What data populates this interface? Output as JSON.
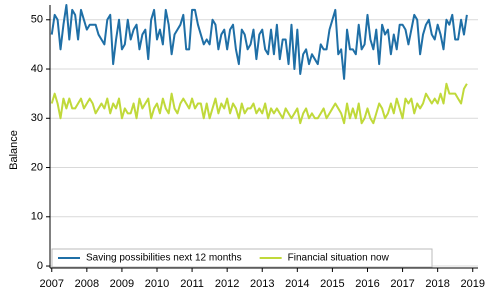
{
  "chart_data": {
    "type": "line",
    "y_label": "Balance",
    "x": [
      2007,
      2007.083,
      2007.167,
      2007.25,
      2007.333,
      2007.417,
      2007.5,
      2007.583,
      2007.667,
      2007.75,
      2007.833,
      2007.917,
      2008,
      2008.083,
      2008.167,
      2008.25,
      2008.333,
      2008.417,
      2008.5,
      2008.583,
      2008.667,
      2008.75,
      2008.833,
      2008.917,
      2009,
      2009.083,
      2009.167,
      2009.25,
      2009.333,
      2009.417,
      2009.5,
      2009.583,
      2009.667,
      2009.75,
      2009.833,
      2009.917,
      2010,
      2010.083,
      2010.167,
      2010.25,
      2010.333,
      2010.417,
      2010.5,
      2010.583,
      2010.667,
      2010.75,
      2010.833,
      2010.917,
      2011,
      2011.083,
      2011.167,
      2011.25,
      2011.333,
      2011.417,
      2011.5,
      2011.583,
      2011.667,
      2011.75,
      2011.833,
      2011.917,
      2012,
      2012.083,
      2012.167,
      2012.25,
      2012.333,
      2012.417,
      2012.5,
      2012.583,
      2012.667,
      2012.75,
      2012.833,
      2012.917,
      2013,
      2013.083,
      2013.167,
      2013.25,
      2013.333,
      2013.417,
      2013.5,
      2013.583,
      2013.667,
      2013.75,
      2013.833,
      2013.917,
      2014,
      2014.083,
      2014.167,
      2014.25,
      2014.333,
      2014.417,
      2014.5,
      2014.583,
      2014.667,
      2014.75,
      2014.833,
      2014.917,
      2015,
      2015.083,
      2015.167,
      2015.25,
      2015.333,
      2015.417,
      2015.5,
      2015.583,
      2015.667,
      2015.75,
      2015.833,
      2015.917,
      2016,
      2016.083,
      2016.167,
      2016.25,
      2016.333,
      2016.417,
      2016.5,
      2016.583,
      2016.667,
      2016.75,
      2016.833,
      2016.917,
      2017,
      2017.083,
      2017.167,
      2017.25,
      2017.333,
      2017.417,
      2017.5,
      2017.583,
      2017.667,
      2017.75,
      2017.833,
      2017.917,
      2018,
      2018.083,
      2018.167,
      2018.25,
      2018.333,
      2018.417,
      2018.5,
      2018.583,
      2018.667,
      2018.75,
      2018.833
    ],
    "series": [
      {
        "name": "Saving possibilities next 12 months",
        "color": "#1f6fa6",
        "values": [
          47,
          51,
          50,
          44,
          49,
          53,
          46,
          52,
          51,
          46,
          52,
          50,
          48,
          49,
          49,
          49,
          47,
          46,
          45,
          50,
          51,
          41,
          46,
          50,
          44,
          45,
          50,
          46,
          48,
          49,
          44,
          47,
          48,
          42,
          50,
          52,
          46,
          48,
          45,
          52,
          49,
          43,
          47,
          48,
          49,
          51,
          44,
          44,
          52,
          52,
          49,
          47,
          45,
          46,
          45,
          50,
          49,
          44,
          47,
          48,
          44,
          48,
          49,
          44,
          41,
          48,
          47,
          44,
          45,
          48,
          42,
          47,
          48,
          44,
          43,
          48,
          43,
          49,
          42,
          46,
          46,
          41,
          49,
          40,
          48,
          39,
          43,
          44,
          41,
          43,
          42,
          41,
          45,
          44,
          44,
          48,
          50,
          52,
          43,
          44,
          38,
          48,
          44,
          44,
          43,
          49,
          44,
          45,
          51,
          46,
          44,
          48,
          41,
          49,
          47,
          48,
          43,
          47,
          44,
          49,
          49,
          48,
          45,
          48,
          51,
          50,
          43,
          47,
          49,
          50,
          47,
          46,
          49,
          47,
          44,
          50,
          49,
          51,
          46,
          46,
          50,
          47,
          51
        ]
      },
      {
        "name": "Financial situation now",
        "color": "#c0d93a",
        "values": [
          33,
          35,
          33,
          30,
          34,
          32,
          34,
          32,
          32,
          33,
          34,
          32,
          33,
          34,
          33,
          31,
          32,
          33,
          32,
          34,
          31,
          33,
          32,
          34,
          30,
          32,
          31,
          31,
          33,
          30,
          34,
          32,
          33,
          34,
          30,
          32,
          33,
          31,
          34,
          32,
          31,
          35,
          32,
          31,
          33,
          34,
          33,
          32,
          34,
          32,
          33,
          33,
          30,
          33,
          30,
          32,
          34,
          31,
          33,
          32,
          34,
          31,
          33,
          32,
          30,
          33,
          31,
          32,
          32,
          33,
          31,
          32,
          31,
          33,
          30,
          32,
          31,
          32,
          31,
          30,
          32,
          31,
          30,
          31,
          32,
          29,
          31,
          32,
          30,
          31,
          30,
          30,
          31,
          32,
          30,
          31,
          32,
          33,
          32,
          31,
          29,
          33,
          30,
          32,
          30,
          33,
          29,
          30,
          32,
          30,
          29,
          31,
          33,
          32,
          30,
          31,
          33,
          31,
          34,
          32,
          30,
          34,
          33,
          34,
          31,
          33,
          32,
          33,
          35,
          34,
          33,
          34,
          33,
          35,
          33,
          37,
          35,
          35,
          35,
          34,
          33,
          36,
          37
        ]
      }
    ],
    "xlim": [
      2006.95,
      2019.15
    ],
    "xticks": [
      2007,
      2008,
      2009,
      2010,
      2011,
      2012,
      2013,
      2014,
      2015,
      2016,
      2017,
      2018,
      2019
    ],
    "ylim": [
      -0.4,
      53
    ],
    "yticks": [
      0,
      10,
      20,
      30,
      40,
      50
    ],
    "grid": true,
    "legend": "bottom-left"
  }
}
